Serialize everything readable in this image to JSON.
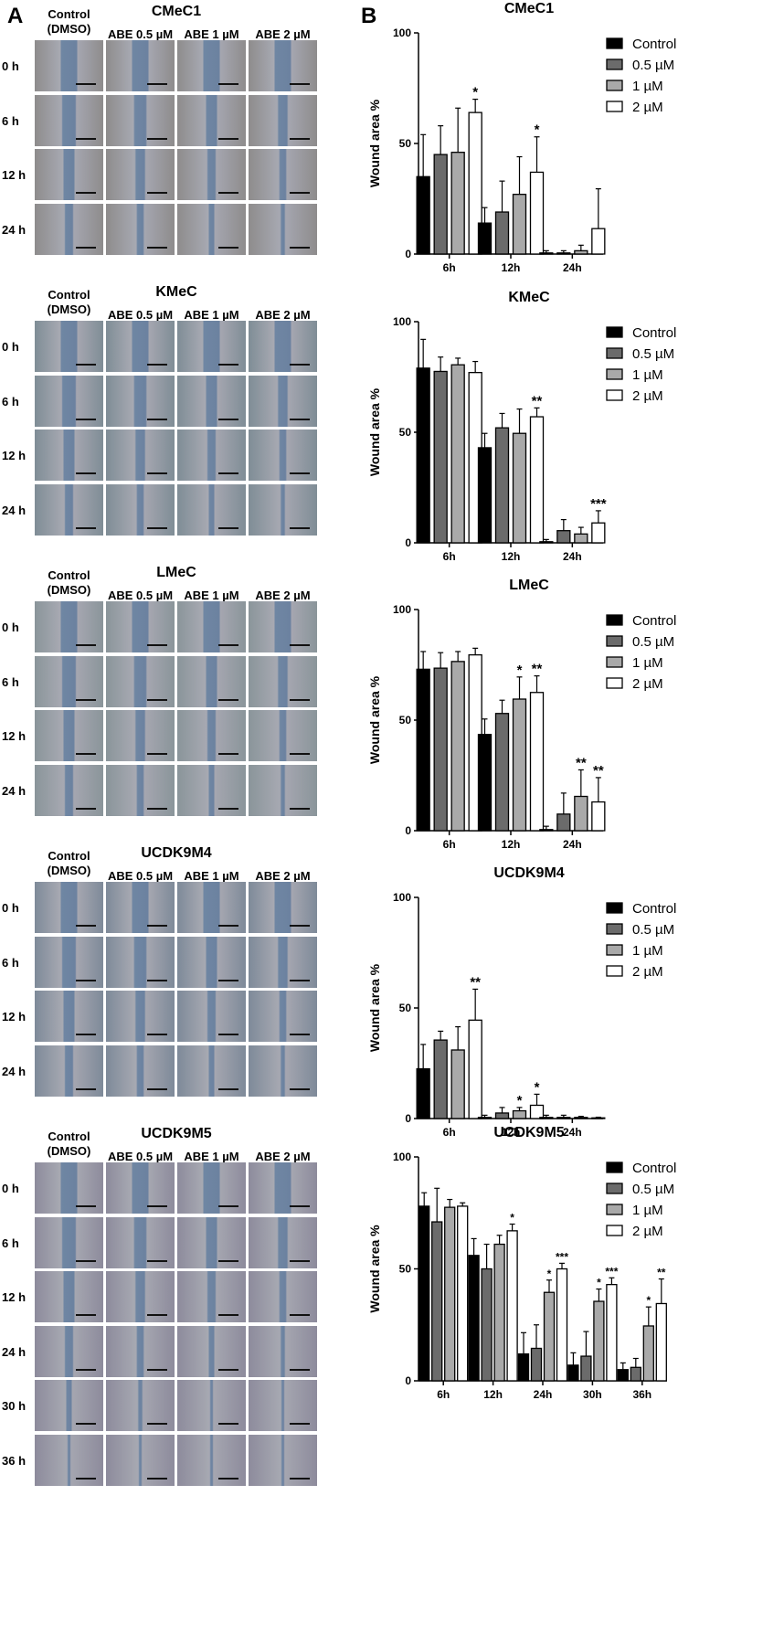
{
  "panel_labels": [
    "A",
    "B"
  ],
  "micrographs": [
    {
      "title": "CMeC1",
      "columns": [
        "Control\n(DMSO)",
        "ABE 0.5 µM",
        "ABE 1 µM",
        "ABE 2 µM"
      ],
      "rows": [
        "0 h",
        "6 h",
        "12 h",
        "24 h"
      ],
      "tint": "#8e8c8c"
    },
    {
      "title": "KMeC",
      "columns": [
        "Control\n(DMSO)",
        "ABE 0.5 µM",
        "ABE 1 µM",
        "ABE 2 µM"
      ],
      "rows": [
        "0 h",
        "6 h",
        "12 h",
        "24 h"
      ],
      "tint": "#7f8d96"
    },
    {
      "title": "LMeC",
      "columns": [
        "Control\n(DMSO)",
        "ABE 0.5 µM",
        "ABE 1 µM",
        "ABE 2 µM"
      ],
      "rows": [
        "0 h",
        "6 h",
        "12 h",
        "24 h"
      ],
      "tint": "#8a959a"
    },
    {
      "title": "UCDK9M4",
      "columns": [
        "Control\n(DMSO)",
        "ABE 0.5 µM",
        "ABE 1 µM",
        "ABE 2 µM"
      ],
      "rows": [
        "0 h",
        "6 h",
        "12 h",
        "24 h"
      ],
      "tint": "#7e8a99"
    },
    {
      "title": "UCDK9M5",
      "columns": [
        "Control\n(DMSO)",
        "ABE 0.5 µM",
        "ABE 1 µM",
        "ABE 2 µM"
      ],
      "rows": [
        "0 h",
        "6 h",
        "12 h",
        "24 h",
        "30 h",
        "36 h"
      ],
      "tint": "#8d8b9c"
    }
  ],
  "chart_data": [
    {
      "type": "bar",
      "title": "CMeC1",
      "ylabel": "Wound area %",
      "ylim": [
        0,
        100
      ],
      "yticks": [
        0,
        50,
        100
      ],
      "categories": [
        "6h",
        "12h",
        "24h"
      ],
      "legend_position": "top-right",
      "series": [
        {
          "name": "Control",
          "values": [
            35,
            14,
            0.5
          ],
          "errors": [
            19,
            7,
            1
          ],
          "sig": [
            "",
            "",
            ""
          ]
        },
        {
          "name": "0.5 µM",
          "values": [
            45,
            19,
            0.5
          ],
          "errors": [
            13,
            14,
            1
          ],
          "sig": [
            "",
            "",
            ""
          ]
        },
        {
          "name": "1 µM",
          "values": [
            46,
            27,
            1.5
          ],
          "errors": [
            20,
            17,
            2.5
          ],
          "sig": [
            "",
            "",
            ""
          ]
        },
        {
          "name": "2 µM",
          "values": [
            64,
            37,
            11.5
          ],
          "errors": [
            6,
            16,
            18
          ],
          "sig": [
            "*",
            "*",
            ""
          ]
        }
      ]
    },
    {
      "type": "bar",
      "title": "KMeC",
      "ylabel": "Wound area %",
      "ylim": [
        0,
        100
      ],
      "yticks": [
        0,
        50,
        100
      ],
      "categories": [
        "6h",
        "12h",
        "24h"
      ],
      "legend_position": "top-right",
      "series": [
        {
          "name": "Control",
          "values": [
            79,
            43,
            0.5
          ],
          "errors": [
            13,
            6.5,
            1
          ],
          "sig": [
            "",
            "",
            ""
          ]
        },
        {
          "name": "0.5 µM",
          "values": [
            77.5,
            52,
            5.5
          ],
          "errors": [
            6.5,
            6.5,
            5
          ],
          "sig": [
            "",
            "",
            ""
          ]
        },
        {
          "name": "1 µM",
          "values": [
            80.5,
            49.5,
            4
          ],
          "errors": [
            3,
            11,
            3
          ],
          "sig": [
            "",
            "",
            ""
          ]
        },
        {
          "name": "2 µM",
          "values": [
            77,
            57,
            9
          ],
          "errors": [
            5,
            4,
            5.5
          ],
          "sig": [
            "",
            "**",
            "***"
          ]
        }
      ]
    },
    {
      "type": "bar",
      "title": "LMeC",
      "ylabel": "Wound area %",
      "ylim": [
        0,
        100
      ],
      "yticks": [
        0,
        50,
        100
      ],
      "categories": [
        "6h",
        "12h",
        "24h"
      ],
      "legend_position": "top-right",
      "series": [
        {
          "name": "Control",
          "values": [
            73,
            43.5,
            0.5
          ],
          "errors": [
            8,
            7,
            1.5
          ],
          "sig": [
            "",
            "",
            ""
          ]
        },
        {
          "name": "0.5 µM",
          "values": [
            73.5,
            53,
            7.5
          ],
          "errors": [
            7,
            6,
            9.5
          ],
          "sig": [
            "",
            "",
            ""
          ]
        },
        {
          "name": "1 µM",
          "values": [
            76.5,
            59.5,
            15.5
          ],
          "errors": [
            4.5,
            10,
            12
          ],
          "sig": [
            "",
            "*",
            "**"
          ]
        },
        {
          "name": "2 µM",
          "values": [
            79.5,
            62.5,
            13
          ],
          "errors": [
            3,
            7.5,
            11
          ],
          "sig": [
            "",
            "**",
            "**"
          ]
        }
      ]
    },
    {
      "type": "bar",
      "title": "UCDK9M4",
      "ylabel": "Wound area %",
      "ylim": [
        0,
        100
      ],
      "yticks": [
        0,
        50,
        100
      ],
      "categories": [
        "6h",
        "12h",
        "24h"
      ],
      "legend_position": "top-right",
      "series": [
        {
          "name": "Control",
          "values": [
            22.5,
            0.5,
            0.5
          ],
          "errors": [
            11,
            1,
            1
          ],
          "sig": [
            "",
            "",
            ""
          ]
        },
        {
          "name": "0.5 µM",
          "values": [
            35.5,
            2.5,
            0.5
          ],
          "errors": [
            4,
            2.5,
            1
          ],
          "sig": [
            "",
            "",
            ""
          ]
        },
        {
          "name": "1 µM",
          "values": [
            31,
            3.5,
            0.5
          ],
          "errors": [
            10.5,
            1.5,
            0.5
          ],
          "sig": [
            "",
            "*",
            ""
          ]
        },
        {
          "name": "2 µM",
          "values": [
            44.5,
            6,
            0.3
          ],
          "errors": [
            14,
            5,
            0.3
          ],
          "sig": [
            "**",
            "*",
            ""
          ]
        }
      ]
    },
    {
      "type": "bar",
      "title": "UCDK9M5",
      "ylabel": "Wound area %",
      "ylim": [
        0,
        100
      ],
      "yticks": [
        0,
        50,
        100
      ],
      "categories": [
        "6h",
        "12h",
        "24h",
        "30h",
        "36h"
      ],
      "legend_position": "top-right",
      "series": [
        {
          "name": "Control",
          "values": [
            78,
            56,
            12,
            7,
            5
          ],
          "errors": [
            6,
            7.5,
            9.5,
            5.5,
            3
          ],
          "sig": [
            "",
            "",
            "",
            "",
            ""
          ]
        },
        {
          "name": "0.5 µM",
          "values": [
            71,
            50,
            14.5,
            11,
            6
          ],
          "errors": [
            15,
            11,
            10.5,
            11,
            4
          ],
          "sig": [
            "",
            "",
            "",
            "",
            ""
          ]
        },
        {
          "name": "1 µM",
          "values": [
            77.5,
            61,
            39.5,
            35.5,
            24.5
          ],
          "errors": [
            3.5,
            4,
            5.5,
            5.5,
            8.5
          ],
          "sig": [
            "",
            "",
            "*",
            "*",
            "*"
          ]
        },
        {
          "name": "2 µM",
          "values": [
            78,
            67,
            50,
            43,
            34.5
          ],
          "errors": [
            1.5,
            3,
            2.5,
            3,
            11
          ],
          "sig": [
            "",
            "*",
            "***",
            "***",
            "**"
          ]
        }
      ]
    }
  ],
  "series_colors": [
    "#000000",
    "#6b6b6b",
    "#a9a9a9",
    "#ffffff"
  ]
}
